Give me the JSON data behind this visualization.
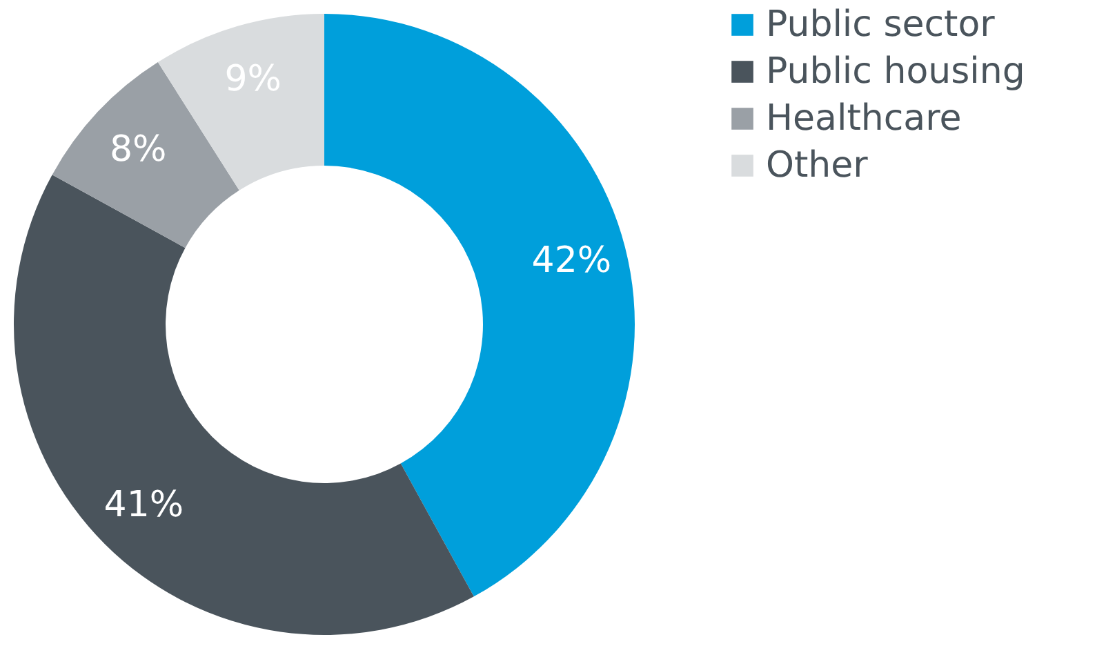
{
  "chart_data": {
    "type": "donut",
    "categories": [
      "Public sector",
      "Public housing",
      "Healthcare",
      "Other"
    ],
    "values": [
      42,
      41,
      8,
      9
    ],
    "colors": [
      "#009fdb",
      "#4a545c",
      "#9aa0a6",
      "#d9dcde"
    ],
    "value_labels": [
      "42%",
      "41%",
      "8%",
      "9%"
    ],
    "legend": "right"
  }
}
